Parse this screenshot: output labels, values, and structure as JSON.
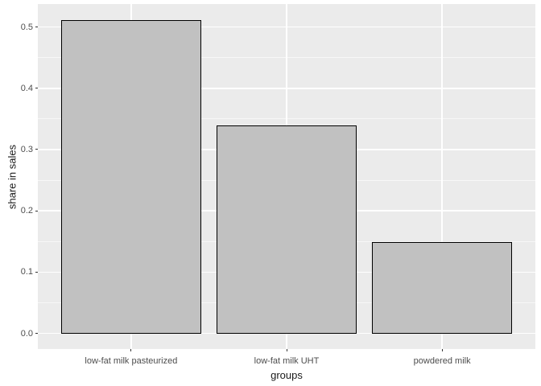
{
  "chart_data": {
    "type": "bar",
    "title": "",
    "categories": [
      "low-fat milk pasteurized",
      "low-fat milk UHT",
      "powdered milk"
    ],
    "values": [
      0.512,
      0.34,
      0.149
    ],
    "xlabel": "groups",
    "ylabel": "share in sales",
    "y_ticks": [
      0.0,
      0.1,
      0.2,
      0.3,
      0.4,
      0.5
    ],
    "y_tick_labels": [
      "0.0",
      "0.1",
      "0.2",
      "0.3",
      "0.4",
      "0.5"
    ],
    "ylim": [
      0,
      0.512
    ],
    "grid": "on",
    "legend": "none",
    "bar_width_fraction": 0.9,
    "style": {
      "figure_bg": "#FFFFFF",
      "panel_bg": "#EBEBEB",
      "grid_major_color": "#FFFFFF",
      "grid_minor_color": "rgba(255,255,255,0.6)",
      "bar_fill": "#C1C1C1",
      "bar_border": "#000000",
      "tick_mark_color": "#333333",
      "tick_label_color": "#4D4D4D",
      "axis_title_color": "#1A1A1A"
    }
  }
}
